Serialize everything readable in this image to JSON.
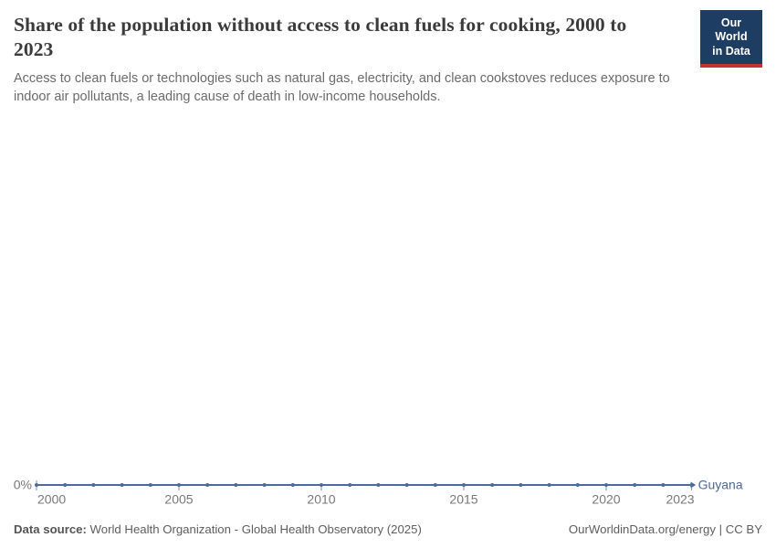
{
  "header": {
    "title": "Share of the population without access to clean fuels for cooking, 2000 to 2023",
    "subtitle": "Access to clean fuels or technologies such as natural gas, electricity, and clean cookstoves reduces exposure to indoor air pollutants, a leading cause of death in low-income households.",
    "logo": {
      "line1": "Our World",
      "line2": "in Data"
    }
  },
  "footer": {
    "datasource_label": "Data source:",
    "datasource_value": " World Health Organization - Global Health Observatory (2025)",
    "credit": "OurWorldinData.org/energy | CC BY"
  },
  "colors": {
    "line": "#4c6a9c",
    "tick": "#7d92b5",
    "axis_text": "#787878",
    "logo_bg": "#1d3d63",
    "logo_red": "#c5332d"
  },
  "chart_data": {
    "type": "line",
    "title": "Share of the population without access to clean fuels for cooking, 2000 to 2023",
    "entity_label": "Guyana",
    "x": [
      2000,
      2001,
      2002,
      2003,
      2004,
      2005,
      2006,
      2007,
      2008,
      2009,
      2010,
      2011,
      2012,
      2013,
      2014,
      2015,
      2016,
      2017,
      2018,
      2019,
      2020,
      2021,
      2022,
      2023
    ],
    "series": [
      {
        "name": "Guyana",
        "values": [
          0,
          0,
          0,
          0,
          0,
          0,
          0,
          0,
          0,
          0,
          0,
          0,
          0,
          0,
          0,
          0,
          0,
          0,
          0,
          0,
          0,
          0,
          0,
          0
        ]
      }
    ],
    "unit": "%",
    "x_ticks": [
      2000,
      2005,
      2010,
      2015,
      2020,
      2023
    ],
    "y_ticks": [
      "0%"
    ],
    "grid": false,
    "legend": "entity label at line end",
    "marker": "dot every year"
  }
}
